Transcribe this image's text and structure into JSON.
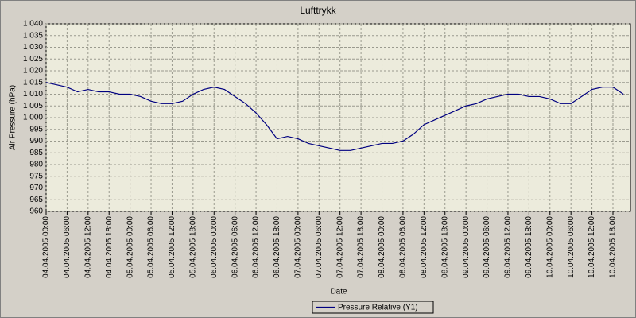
{
  "chart_data": {
    "type": "line",
    "title": "Lufttrykk",
    "x_label": "Date",
    "y_label": "Air Pressure (hPa)",
    "x": [
      "04.04.2005 00:00",
      "04.04.2005 03:00",
      "04.04.2005 06:00",
      "04.04.2005 09:00",
      "04.04.2005 12:00",
      "04.04.2005 15:00",
      "04.04.2005 18:00",
      "04.04.2005 21:00",
      "05.04.2005 00:00",
      "05.04.2005 03:00",
      "05.04.2005 06:00",
      "05.04.2005 09:00",
      "05.04.2005 12:00",
      "05.04.2005 15:00",
      "05.04.2005 18:00",
      "05.04.2005 21:00",
      "06.04.2005 00:00",
      "06.04.2005 03:00",
      "06.04.2005 06:00",
      "06.04.2005 09:00",
      "06.04.2005 12:00",
      "06.04.2005 15:00",
      "06.04.2005 18:00",
      "06.04.2005 21:00",
      "07.04.2005 00:00",
      "07.04.2005 03:00",
      "07.04.2005 06:00",
      "07.04.2005 09:00",
      "07.04.2005 12:00",
      "07.04.2005 15:00",
      "07.04.2005 18:00",
      "07.04.2005 21:00",
      "08.04.2005 00:00",
      "08.04.2005 03:00",
      "08.04.2005 06:00",
      "08.04.2005 09:00",
      "08.04.2005 12:00",
      "08.04.2005 15:00",
      "08.04.2005 18:00",
      "08.04.2005 21:00",
      "09.04.2005 00:00",
      "09.04.2005 03:00",
      "09.04.2005 06:00",
      "09.04.2005 09:00",
      "09.04.2005 12:00",
      "09.04.2005 15:00",
      "09.04.2005 18:00",
      "09.04.2005 21:00",
      "10.04.2005 00:00",
      "10.04.2005 03:00",
      "10.04.2005 06:00",
      "10.04.2005 09:00",
      "10.04.2005 12:00",
      "10.04.2005 15:00",
      "10.04.2005 18:00",
      "10.04.2005 21:00"
    ],
    "series": [
      {
        "name": "Pressure Relative (Y1)",
        "color": "#000080",
        "values": [
          1015,
          1014,
          1013,
          1011,
          1012,
          1011,
          1011,
          1010,
          1010,
          1009,
          1007,
          1006,
          1006,
          1007,
          1010,
          1012,
          1013,
          1012,
          1009,
          1006,
          1002,
          997,
          991,
          992,
          991,
          989,
          988,
          987,
          986,
          986,
          987,
          988,
          989,
          989,
          990,
          993,
          997,
          999,
          1001,
          1003,
          1005,
          1006,
          1008,
          1009,
          1010,
          1010,
          1009,
          1009,
          1008,
          1006,
          1006,
          1009,
          1012,
          1013,
          1013,
          1010
        ]
      }
    ],
    "xlim": [
      "04.04.2005 00:00",
      "10.04.2005 23:00"
    ],
    "xticks": [
      "04.04.2005 00:00",
      "04.04.2005 06:00",
      "04.04.2005 12:00",
      "04.04.2005 18:00",
      "05.04.2005 00:00",
      "05.04.2005 06:00",
      "05.04.2005 12:00",
      "05.04.2005 18:00",
      "06.04.2005 00:00",
      "06.04.2005 06:00",
      "06.04.2005 12:00",
      "06.04.2005 18:00",
      "07.04.2005 00:00",
      "07.04.2005 06:00",
      "07.04.2005 12:00",
      "07.04.2005 18:00",
      "08.04.2005 00:00",
      "08.04.2005 06:00",
      "08.04.2005 12:00",
      "08.04.2005 18:00",
      "09.04.2005 00:00",
      "09.04.2005 06:00",
      "09.04.2005 12:00",
      "09.04.2005 18:00",
      "10.04.2005 00:00",
      "10.04.2005 06:00",
      "10.04.2005 12:00",
      "10.04.2005 18:00"
    ],
    "ylim": [
      960,
      1040
    ],
    "yticks": [
      960,
      965,
      970,
      975,
      980,
      985,
      990,
      995,
      {
        "value": 1000,
        "label": "1 000"
      },
      {
        "value": 1005,
        "label": "1 005"
      },
      {
        "value": 1010,
        "label": "1 010"
      },
      {
        "value": 1015,
        "label": "1 015"
      },
      {
        "value": 1020,
        "label": "1 020"
      },
      {
        "value": 1025,
        "label": "1 025"
      },
      {
        "value": 1030,
        "label": "1 030"
      },
      {
        "value": 1035,
        "label": "1 035"
      },
      {
        "value": 1040,
        "label": "1 040"
      }
    ],
    "grid": true,
    "legend": "bottom"
  }
}
